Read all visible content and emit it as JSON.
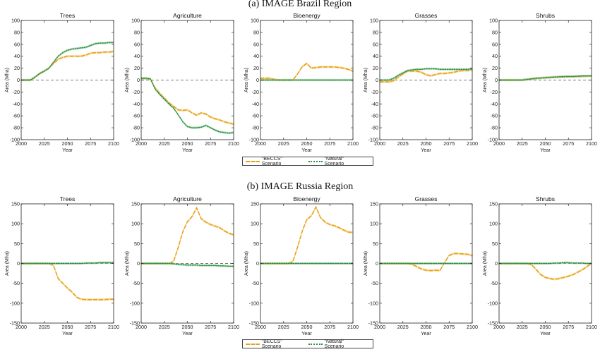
{
  "sections": [
    {
      "title": "(a) IMAGE Brazil Region",
      "legend": {
        "beccs": "\"BECCS\" Scenario",
        "natural": "\"Natural\" Scenario"
      }
    },
    {
      "title": "(b) IMAGE Russia Region",
      "legend": {
        "beccs": "\"BECCS\" Scenario",
        "natural": "\"Natural\" Scenario"
      }
    }
  ],
  "colors": {
    "beccs": "#e8a21c",
    "beccs_band": "#f6c86a",
    "natural": "#2e8b3e",
    "zero_line": "#777777"
  },
  "chart_data": [
    {
      "type": "line",
      "title": "Trees",
      "section": "(a) IMAGE Brazil Region",
      "xlabel": "Year",
      "ylabel": "Area (Mha)",
      "xlim": [
        2000,
        2100
      ],
      "ylim": [
        -100,
        100
      ],
      "xticks": [
        2000,
        2025,
        2050,
        2075,
        2100
      ],
      "yticks": [
        -100,
        -80,
        -60,
        -40,
        -20,
        0,
        20,
        40,
        60,
        80,
        100
      ],
      "x": [
        2000,
        2010,
        2015,
        2020,
        2025,
        2030,
        2035,
        2040,
        2045,
        2050,
        2055,
        2060,
        2065,
        2070,
        2075,
        2080,
        2085,
        2090,
        2095,
        2100
      ],
      "series": [
        {
          "name": "\"BECCS\" Scenario",
          "values": [
            0,
            0,
            5,
            11,
            15,
            20,
            28,
            35,
            38,
            40,
            40,
            40,
            40,
            42,
            45,
            46,
            46,
            47,
            47,
            48
          ]
        },
        {
          "name": "\"Natural\" Scenario",
          "values": [
            0,
            0,
            5,
            11,
            15,
            20,
            30,
            40,
            46,
            50,
            52,
            53,
            54,
            55,
            58,
            61,
            62,
            62,
            63,
            63
          ]
        }
      ]
    },
    {
      "type": "line",
      "title": "Agriculture",
      "section": "(a) IMAGE Brazil Region",
      "xlabel": "Year",
      "ylabel": "Area (Mha)",
      "xlim": [
        2000,
        2100
      ],
      "ylim": [
        -100,
        100
      ],
      "xticks": [
        2000,
        2025,
        2050,
        2075,
        2100
      ],
      "yticks": [
        -100,
        -80,
        -60,
        -40,
        -20,
        0,
        20,
        40,
        60,
        80,
        100
      ],
      "x": [
        2000,
        2005,
        2010,
        2015,
        2020,
        2025,
        2030,
        2035,
        2040,
        2045,
        2050,
        2055,
        2060,
        2065,
        2070,
        2075,
        2080,
        2085,
        2090,
        2095,
        2100
      ],
      "series": [
        {
          "name": "\"BECCS\" Scenario",
          "values": [
            3,
            3,
            2,
            -13,
            -22,
            -30,
            -38,
            -44,
            -50,
            -51,
            -50,
            -55,
            -59,
            -55,
            -57,
            -62,
            -65,
            -67,
            -70,
            -72,
            -74
          ]
        },
        {
          "name": "\"Natural\" Scenario",
          "values": [
            3,
            3,
            2,
            -15,
            -24,
            -32,
            -40,
            -47,
            -58,
            -70,
            -78,
            -80,
            -80,
            -79,
            -76,
            -80,
            -84,
            -87,
            -88,
            -89,
            -88
          ]
        }
      ]
    },
    {
      "type": "line",
      "title": "Bioenergy",
      "section": "(a) IMAGE Brazil Region",
      "xlabel": "Year",
      "ylabel": "Area (Mha)",
      "xlim": [
        2000,
        2100
      ],
      "ylim": [
        -100,
        100
      ],
      "xticks": [
        2000,
        2025,
        2050,
        2075,
        2100
      ],
      "yticks": [
        -100,
        -80,
        -60,
        -40,
        -20,
        0,
        20,
        40,
        60,
        80,
        100
      ],
      "x": [
        2000,
        2010,
        2015,
        2020,
        2025,
        2030,
        2035,
        2040,
        2045,
        2050,
        2055,
        2060,
        2065,
        2070,
        2075,
        2080,
        2085,
        2090,
        2095,
        2100
      ],
      "series": [
        {
          "name": "\"BECCS\" Scenario",
          "values": [
            3,
            3,
            1,
            0,
            0,
            0,
            0,
            10,
            22,
            28,
            20,
            21,
            22,
            22,
            22,
            22,
            21,
            20,
            18,
            15
          ]
        },
        {
          "name": "\"Natural\" Scenario",
          "values": [
            0,
            0,
            0,
            0,
            0,
            0,
            0,
            0,
            0,
            0,
            0,
            0,
            0,
            0,
            0,
            0,
            0,
            0,
            0,
            0
          ]
        }
      ]
    },
    {
      "type": "line",
      "title": "Grasses",
      "section": "(a) IMAGE Brazil Region",
      "xlabel": "Year",
      "ylabel": "Area (Mha)",
      "xlim": [
        2000,
        2100
      ],
      "ylim": [
        -100,
        100
      ],
      "xticks": [
        2000,
        2025,
        2050,
        2075,
        2100
      ],
      "yticks": [
        -100,
        -80,
        -60,
        -40,
        -20,
        0,
        20,
        40,
        60,
        80,
        100
      ],
      "x": [
        2000,
        2005,
        2010,
        2015,
        2020,
        2025,
        2030,
        2035,
        2040,
        2045,
        2050,
        2055,
        2060,
        2065,
        2070,
        2075,
        2080,
        2085,
        2090,
        2095,
        2100
      ],
      "series": [
        {
          "name": "\"BECCS\" Scenario",
          "values": [
            -3,
            -3,
            -3,
            -1,
            5,
            10,
            15,
            15,
            15,
            13,
            9,
            7,
            9,
            11,
            11,
            12,
            13,
            15,
            16,
            16,
            17
          ]
        },
        {
          "name": "\"Natural\" Scenario",
          "values": [
            0,
            0,
            0,
            3,
            8,
            12,
            16,
            17,
            18,
            18,
            19,
            19,
            19,
            18,
            18,
            18,
            18,
            18,
            18,
            18,
            19
          ]
        }
      ]
    },
    {
      "type": "line",
      "title": "Shrubs",
      "section": "(a) IMAGE Brazil Region",
      "xlabel": "Year",
      "ylabel": "Area (Mha)",
      "xlim": [
        2000,
        2100
      ],
      "ylim": [
        -100,
        100
      ],
      "xticks": [
        2000,
        2025,
        2050,
        2075,
        2100
      ],
      "yticks": [
        -100,
        -80,
        -60,
        -40,
        -20,
        0,
        20,
        40,
        60,
        80,
        100
      ],
      "x": [
        2000,
        2020,
        2025,
        2030,
        2035,
        2040,
        2050,
        2060,
        2070,
        2080,
        2090,
        2100
      ],
      "series": [
        {
          "name": "\"BECCS\" Scenario",
          "values": [
            0,
            0,
            0,
            1,
            2,
            3,
            4,
            5,
            5,
            6,
            6,
            7
          ]
        },
        {
          "name": "\"Natural\" Scenario",
          "values": [
            0,
            0,
            0,
            1,
            2,
            3,
            4,
            5,
            6,
            6,
            7,
            7
          ]
        }
      ]
    },
    {
      "type": "line",
      "title": "Trees",
      "section": "(b) IMAGE Russia Region",
      "xlabel": "Year",
      "ylabel": "Area (Mha)",
      "xlim": [
        2000,
        2100
      ],
      "ylim": [
        -150,
        150
      ],
      "xticks": [
        2000,
        2025,
        2050,
        2075,
        2100
      ],
      "yticks": [
        -150,
        -100,
        -50,
        0,
        50,
        100,
        150
      ],
      "x": [
        2000,
        2025,
        2030,
        2035,
        2040,
        2045,
        2050,
        2055,
        2060,
        2065,
        2070,
        2075,
        2080,
        2085,
        2090,
        2095,
        2100
      ],
      "series": [
        {
          "name": "\"BECCS\" Scenario",
          "values": [
            0,
            0,
            0,
            -5,
            -38,
            -50,
            -62,
            -72,
            -85,
            -90,
            -91,
            -91,
            -91,
            -91,
            -91,
            -90,
            -90
          ]
        },
        {
          "name": "\"Natural\" Scenario",
          "values": [
            0,
            0,
            0,
            0,
            0,
            0,
            0,
            0,
            0,
            0,
            1,
            1,
            1,
            2,
            2,
            2,
            2
          ]
        }
      ]
    },
    {
      "type": "line",
      "title": "Agriculture",
      "section": "(b) IMAGE Russia Region",
      "xlabel": "Year",
      "ylabel": "Area (Mha)",
      "xlim": [
        2000,
        2100
      ],
      "ylim": [
        -150,
        150
      ],
      "xticks": [
        2000,
        2025,
        2050,
        2075,
        2100
      ],
      "yticks": [
        -150,
        -100,
        -50,
        0,
        50,
        100,
        150
      ],
      "x": [
        2000,
        2025,
        2030,
        2035,
        2040,
        2045,
        2050,
        2055,
        2060,
        2065,
        2070,
        2075,
        2080,
        2085,
        2090,
        2095,
        2100
      ],
      "series": [
        {
          "name": "\"BECCS\" Scenario",
          "values": [
            0,
            0,
            0,
            5,
            40,
            80,
            105,
            118,
            140,
            112,
            104,
            98,
            94,
            90,
            82,
            76,
            72
          ]
        },
        {
          "name": "\"Natural\" Scenario",
          "values": [
            0,
            0,
            0,
            -1,
            -2,
            -3,
            -4,
            -4,
            -4,
            -5,
            -5,
            -5,
            -5,
            -6,
            -6,
            -7,
            -7
          ]
        }
      ]
    },
    {
      "type": "line",
      "title": "Bioenergy",
      "section": "(b) IMAGE Russia Region",
      "xlabel": "Year",
      "ylabel": "Area (Mha)",
      "xlim": [
        2000,
        2100
      ],
      "ylim": [
        -150,
        150
      ],
      "xticks": [
        2000,
        2025,
        2050,
        2075,
        2100
      ],
      "yticks": [
        -150,
        -100,
        -50,
        0,
        50,
        100,
        150
      ],
      "x": [
        2000,
        2025,
        2030,
        2035,
        2040,
        2045,
        2050,
        2055,
        2060,
        2065,
        2070,
        2075,
        2080,
        2085,
        2090,
        2095,
        2100
      ],
      "series": [
        {
          "name": "\"BECCS\" Scenario",
          "values": [
            0,
            0,
            0,
            5,
            40,
            80,
            110,
            120,
            142,
            115,
            104,
            98,
            95,
            90,
            84,
            79,
            78
          ]
        },
        {
          "name": "\"Natural\" Scenario",
          "values": [
            0,
            0,
            0,
            0,
            0,
            0,
            0,
            0,
            0,
            0,
            0,
            0,
            0,
            0,
            0,
            0,
            0
          ]
        }
      ]
    },
    {
      "type": "line",
      "title": "Grasses",
      "section": "(b) IMAGE Russia Region",
      "xlabel": "Year",
      "ylabel": "Area (Mha)",
      "xlim": [
        2000,
        2100
      ],
      "ylim": [
        -150,
        150
      ],
      "xticks": [
        2000,
        2025,
        2050,
        2075,
        2100
      ],
      "yticks": [
        -150,
        -100,
        -50,
        0,
        50,
        100,
        150
      ],
      "x": [
        2000,
        2025,
        2030,
        2035,
        2040,
        2045,
        2050,
        2055,
        2060,
        2065,
        2070,
        2075,
        2080,
        2085,
        2090,
        2095,
        2100
      ],
      "series": [
        {
          "name": "\"BECCS\" Scenario",
          "values": [
            0,
            0,
            0,
            -2,
            -8,
            -14,
            -17,
            -18,
            -17,
            -18,
            2,
            20,
            25,
            25,
            24,
            23,
            20
          ]
        },
        {
          "name": "\"Natural\" Scenario",
          "values": [
            0,
            0,
            0,
            0,
            0,
            0,
            0,
            0,
            0,
            0,
            0,
            0,
            0,
            0,
            0,
            0,
            0
          ]
        }
      ]
    },
    {
      "type": "line",
      "title": "Shrubs",
      "section": "(b) IMAGE Russia Region",
      "xlabel": "Year",
      "ylabel": "Area (Mha)",
      "xlim": [
        2000,
        2100
      ],
      "ylim": [
        -150,
        150
      ],
      "xticks": [
        2000,
        2025,
        2050,
        2075,
        2100
      ],
      "yticks": [
        -150,
        -100,
        -50,
        0,
        50,
        100,
        150
      ],
      "x": [
        2000,
        2030,
        2035,
        2040,
        2045,
        2050,
        2055,
        2060,
        2065,
        2070,
        2075,
        2080,
        2085,
        2090,
        2095,
        2100
      ],
      "series": [
        {
          "name": "\"BECCS\" Scenario",
          "values": [
            0,
            0,
            -3,
            -15,
            -28,
            -35,
            -38,
            -40,
            -38,
            -35,
            -32,
            -28,
            -22,
            -16,
            -8,
            0
          ]
        },
        {
          "name": "\"Natural\" Scenario",
          "values": [
            0,
            0,
            0,
            0,
            0,
            0,
            0,
            1,
            1,
            2,
            2,
            1,
            1,
            1,
            0,
            0
          ]
        }
      ]
    }
  ]
}
